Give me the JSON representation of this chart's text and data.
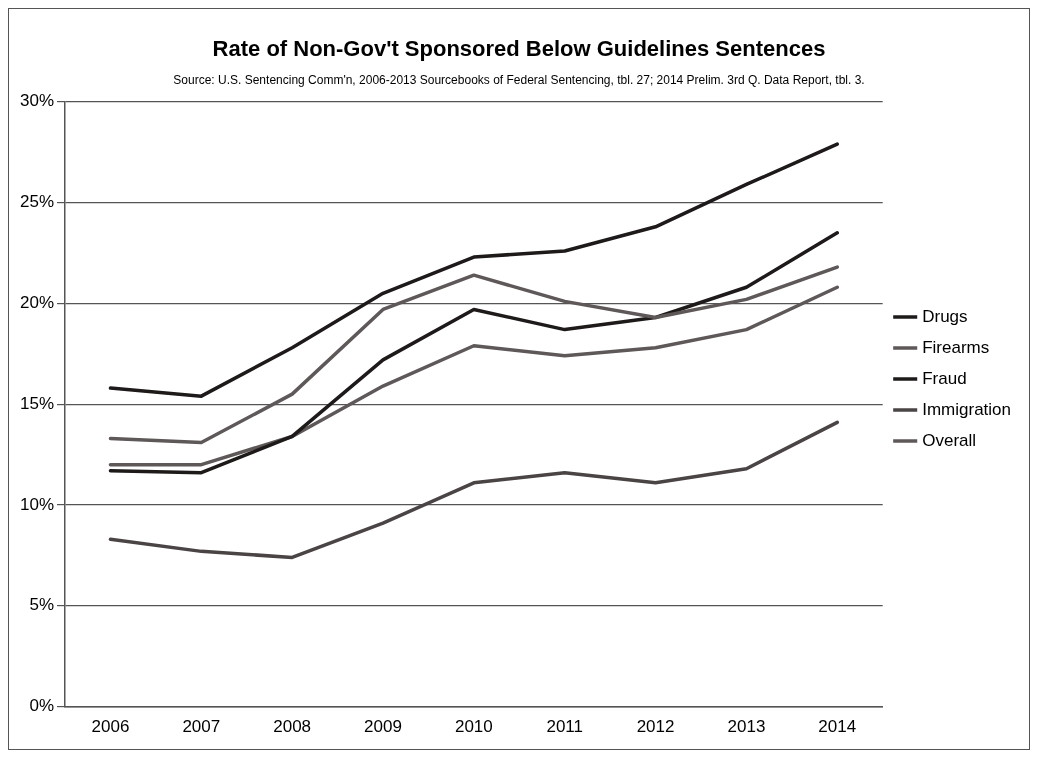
{
  "chart_data": {
    "type": "line",
    "title": "Rate of Non-Gov't Sponsored Below Guidelines Sentences",
    "subtitle": "Source: U.S. Sentencing Comm'n, 2006-2013 Sourcebooks of Federal Sentencing, tbl. 27; 2014 Prelim. 3rd Q. Data Report, tbl. 3.",
    "categories": [
      "2006",
      "2007",
      "2008",
      "2009",
      "2010",
      "2011",
      "2012",
      "2013",
      "2014"
    ],
    "series": [
      {
        "name": "Drugs",
        "color": "#1e1a1a",
        "values": [
          15.8,
          15.4,
          17.8,
          20.5,
          22.3,
          22.6,
          23.8,
          25.9,
          27.9
        ]
      },
      {
        "name": "Firearms",
        "color": "#5e5858",
        "values": [
          13.3,
          13.1,
          15.5,
          19.7,
          21.4,
          20.1,
          19.3,
          20.2,
          21.8
        ]
      },
      {
        "name": "Fraud",
        "color": "#1e1a1a",
        "values": [
          11.7,
          11.6,
          13.4,
          17.2,
          19.7,
          18.7,
          19.3,
          20.8,
          23.5
        ]
      },
      {
        "name": "Immigration",
        "color": "#4a4444",
        "values": [
          8.3,
          7.7,
          7.4,
          9.1,
          11.1,
          11.6,
          11.1,
          11.8,
          14.1
        ]
      },
      {
        "name": "Overall",
        "color": "#5e5858",
        "values": [
          12.0,
          12.0,
          13.4,
          15.9,
          17.9,
          17.4,
          17.8,
          18.7,
          20.8
        ]
      }
    ],
    "ylim": [
      0,
      30
    ],
    "yticks": [
      {
        "value": 0,
        "label": "0%"
      },
      {
        "value": 5,
        "label": "5%"
      },
      {
        "value": 10,
        "label": "10%"
      },
      {
        "value": 15,
        "label": "15%"
      },
      {
        "value": 20,
        "label": "20%"
      },
      {
        "value": 25,
        "label": "25%"
      },
      {
        "value": 30,
        "label": "30%"
      }
    ],
    "grid": "y",
    "legend": "right",
    "marker": "none",
    "line_style": "solid"
  }
}
